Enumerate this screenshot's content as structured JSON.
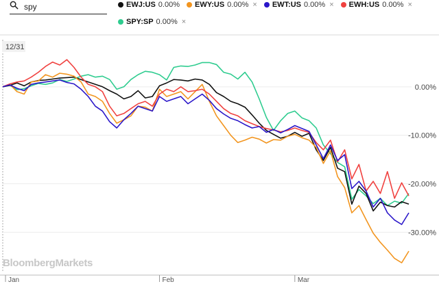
{
  "search": {
    "value": "spy",
    "icon": "search-icon"
  },
  "legend": [
    {
      "symbol": "EWJ:US",
      "change": "0.00%",
      "color": "#111111",
      "removable": false
    },
    {
      "symbol": "EWY:US",
      "change": "0.00%",
      "color": "#f2951f",
      "removable": true
    },
    {
      "symbol": "EWT:US",
      "change": "0.00%",
      "color": "#2a16c9",
      "removable": true
    },
    {
      "symbol": "EWH:US",
      "change": "0.00%",
      "color": "#f0413f",
      "removable": true
    },
    {
      "symbol": "SPY:SP",
      "change": "0.00%",
      "color": "#2ecc8f",
      "removable": true
    }
  ],
  "close_glyph": "×",
  "start_label": "12/31",
  "watermark": "BloombergMarkets",
  "chart_data": {
    "type": "line",
    "x": [
      "12/31",
      "01/02",
      "01/03",
      "01/06",
      "01/07",
      "01/08",
      "01/09",
      "01/10",
      "01/13",
      "01/14",
      "01/15",
      "01/16",
      "01/17",
      "01/21",
      "01/22",
      "01/23",
      "01/24",
      "01/27",
      "01/28",
      "01/29",
      "01/30",
      "01/31",
      "02/03",
      "02/04",
      "02/05",
      "02/06",
      "02/07",
      "02/10",
      "02/11",
      "02/12",
      "02/13",
      "02/14",
      "02/18",
      "02/19",
      "02/20",
      "02/21",
      "02/24",
      "02/25",
      "02/26",
      "02/27",
      "02/28",
      "03/02",
      "03/03",
      "03/04",
      "03/05",
      "03/06",
      "03/09",
      "03/10",
      "03/11",
      "03/12",
      "03/13",
      "03/16",
      "03/17",
      "03/18",
      "03/19",
      "03/20",
      "03/23",
      "03/24"
    ],
    "x_tick_labels": [
      "Jan",
      "Feb",
      "Mar"
    ],
    "y_ticks": [
      0,
      -10,
      -20,
      -30
    ],
    "y_tick_labels": [
      "0.00%",
      "-10.00%",
      "-20.00%",
      "-30.00%"
    ],
    "ylim": [
      -38,
      10
    ],
    "grid": true,
    "series": [
      {
        "name": "EWJ:US",
        "color": "#111111",
        "values": [
          0.0,
          0.3,
          0.8,
          0.2,
          1.0,
          1.3,
          1.4,
          1.6,
          1.8,
          1.9,
          2.0,
          1.5,
          1.0,
          0.5,
          0.0,
          -0.8,
          -1.5,
          -2.5,
          -2.0,
          -0.8,
          -2.3,
          -2.0,
          0.2,
          0.8,
          1.5,
          1.4,
          1.2,
          1.6,
          1.4,
          0.5,
          -1.2,
          -2.0,
          -3.0,
          -3.5,
          -4.2,
          -5.8,
          -7.5,
          -9.0,
          -9.8,
          -10.6,
          -10.2,
          -9.4,
          -10.2,
          -9.6,
          -13.0,
          -15.2,
          -12.5,
          -16.8,
          -17.5,
          -24.2,
          -20.5,
          -22.0,
          -25.6,
          -23.8,
          -24.5,
          -24.8,
          -23.7,
          -24.2
        ]
      },
      {
        "name": "EWY:US",
        "color": "#f2951f",
        "values": [
          0.0,
          0.5,
          -1.0,
          -1.5,
          1.0,
          1.2,
          2.5,
          2.0,
          2.8,
          2.6,
          2.2,
          1.0,
          -1.5,
          -2.0,
          -3.0,
          -5.5,
          -7.5,
          -6.8,
          -6.0,
          -4.0,
          -4.2,
          -5.0,
          -0.5,
          -2.0,
          -1.5,
          -1.0,
          -2.5,
          -1.0,
          0.5,
          -3.0,
          -6.0,
          -8.0,
          -10.0,
          -11.5,
          -11.0,
          -10.4,
          -10.8,
          -11.6,
          -10.9,
          -11.0,
          -10.2,
          -9.8,
          -10.5,
          -11.0,
          -12.5,
          -15.8,
          -13.2,
          -18.5,
          -20.8,
          -26.0,
          -24.5,
          -27.4,
          -30.2,
          -32.1,
          -33.7,
          -35.4,
          -36.3,
          -33.9
        ]
      },
      {
        "name": "EWT:US",
        "color": "#2a16c9",
        "values": [
          0.0,
          0.4,
          -0.3,
          -0.8,
          0.5,
          0.8,
          1.0,
          1.2,
          1.4,
          0.9,
          0.6,
          -0.5,
          -2.0,
          -4.0,
          -5.0,
          -7.2,
          -8.5,
          -6.8,
          -5.5,
          -4.0,
          -4.5,
          -5.0,
          -2.0,
          -3.0,
          -2.5,
          -2.0,
          -3.5,
          -2.5,
          -1.5,
          -2.8,
          -4.5,
          -5.6,
          -6.5,
          -7.0,
          -7.8,
          -8.5,
          -8.2,
          -9.4,
          -8.8,
          -9.5,
          -8.8,
          -8.0,
          -8.6,
          -9.2,
          -12.0,
          -14.8,
          -12.0,
          -15.2,
          -14.0,
          -21.0,
          -19.5,
          -21.5,
          -24.8,
          -23.0,
          -26.0,
          -27.5,
          -28.4,
          -26.0
        ]
      },
      {
        "name": "EWH:US",
        "color": "#f0413f",
        "values": [
          0.0,
          0.6,
          1.0,
          1.2,
          2.0,
          3.0,
          4.2,
          5.1,
          4.5,
          5.6,
          4.0,
          2.0,
          0.5,
          0.0,
          -1.0,
          -4.0,
          -6.0,
          -5.5,
          -4.5,
          -3.5,
          -3.0,
          -4.0,
          -1.5,
          -0.5,
          -1.0,
          0.0,
          -1.0,
          -0.8,
          -0.5,
          -1.5,
          -3.0,
          -4.5,
          -5.5,
          -6.0,
          -7.0,
          -7.6,
          -8.2,
          -8.6,
          -8.9,
          -9.3,
          -9.0,
          -8.5,
          -9.0,
          -9.4,
          -11.5,
          -13.0,
          -11.0,
          -15.5,
          -13.0,
          -19.0,
          -16.0,
          -21.5,
          -19.5,
          -22.0,
          -17.5,
          -23.0,
          -19.8,
          -22.5
        ]
      },
      {
        "name": "SPY:SP",
        "color": "#2ecc8f",
        "values": [
          0.0,
          0.3,
          -0.6,
          -0.4,
          0.2,
          0.7,
          0.5,
          0.8,
          1.5,
          1.1,
          1.6,
          2.2,
          2.5,
          2.0,
          2.2,
          1.5,
          -0.5,
          0.0,
          1.5,
          2.5,
          3.2,
          3.0,
          2.5,
          1.4,
          4.0,
          4.3,
          4.2,
          4.5,
          5.0,
          5.0,
          4.6,
          3.0,
          2.6,
          1.6,
          3.0,
          1.0,
          -2.5,
          -6.3,
          -9.0,
          -7.0,
          -5.5,
          -5.0,
          -6.4,
          -7.0,
          -8.5,
          -12.0,
          -13.8,
          -15.6,
          -16.5,
          -23.2,
          -21.2,
          -22.5,
          -24.1,
          -23.0,
          -24.5,
          -23.6,
          -24.0,
          -22.0
        ]
      }
    ]
  }
}
